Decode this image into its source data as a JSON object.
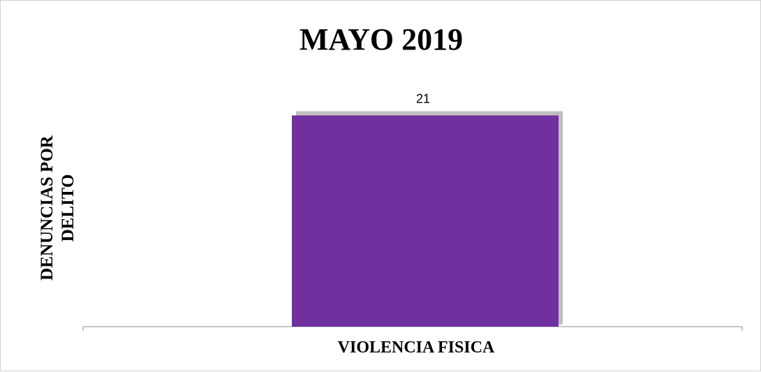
{
  "chart_data": {
    "type": "bar",
    "title": "MAYO 2019",
    "ylabel": "DENUNCIAS POR DELITO",
    "categories": [
      "VIOLENCIA FISICA"
    ],
    "values": [
      21
    ],
    "data_labels": [
      "21"
    ],
    "ylim": [
      0,
      22
    ],
    "grid": false,
    "legend": "none",
    "bar_color": "#7030A0",
    "bar_shadow_color": "#bfbfbf",
    "axis_color": "#8c8c8c"
  }
}
